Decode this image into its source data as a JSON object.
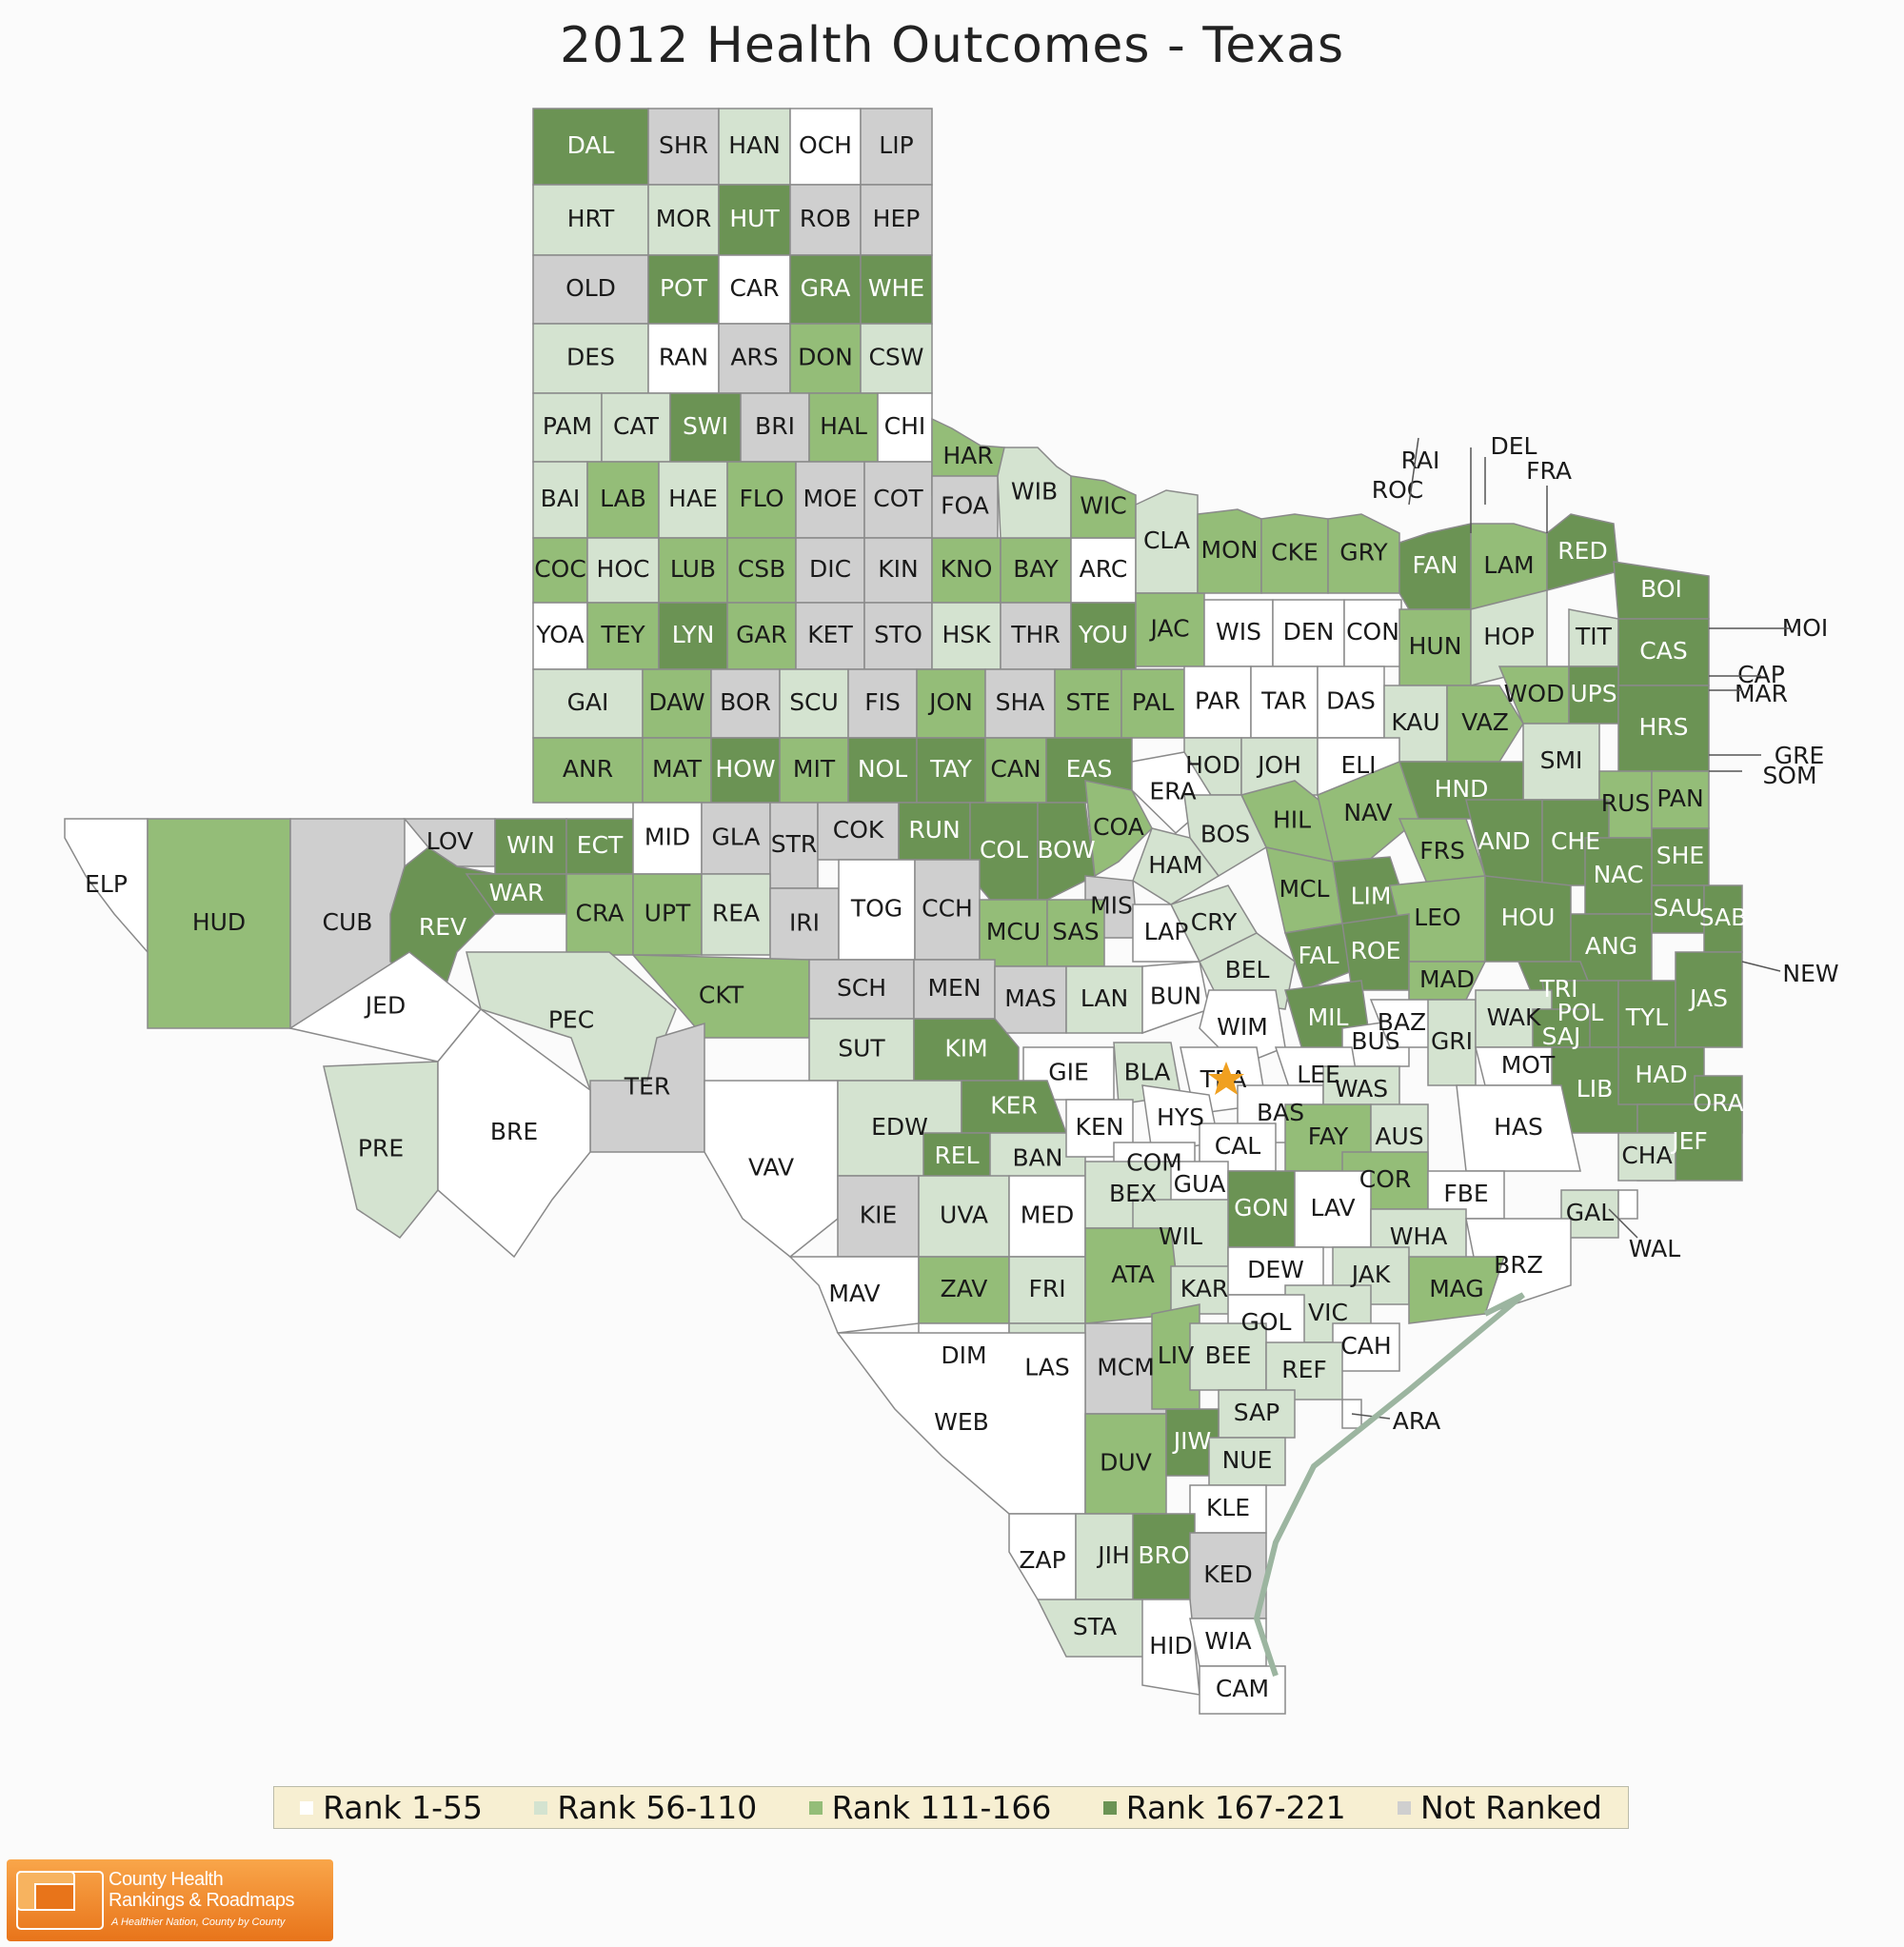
{
  "title": "2012 Health Outcomes - Texas",
  "legend": [
    {
      "label": "Rank 1-55",
      "color": "#ffffff"
    },
    {
      "label": "Rank 56-110",
      "color": "#d4e3d0"
    },
    {
      "label": "Rank 111-166",
      "color": "#94bd78"
    },
    {
      "label": "Rank 167-221",
      "color": "#6b9354"
    },
    {
      "label": "Not Ranked",
      "color": "#cfcfcf"
    }
  ],
  "brand": {
    "name": "County Health\nRankings & Roadmaps",
    "tagline": "A Healthier Nation, County by County"
  },
  "counties": [
    {
      "id": "DAL",
      "cls": 3
    },
    {
      "id": "SHR",
      "cls": 4
    },
    {
      "id": "HAN",
      "cls": 1
    },
    {
      "id": "OCH",
      "cls": 0
    },
    {
      "id": "LIP",
      "cls": 4
    },
    {
      "id": "HRT",
      "cls": 1
    },
    {
      "id": "MOR",
      "cls": 1
    },
    {
      "id": "HUT",
      "cls": 3
    },
    {
      "id": "ROB",
      "cls": 4
    },
    {
      "id": "HEP",
      "cls": 4
    },
    {
      "id": "OLD",
      "cls": 4
    },
    {
      "id": "POT",
      "cls": 3
    },
    {
      "id": "CAR",
      "cls": 0
    },
    {
      "id": "GRA",
      "cls": 3
    },
    {
      "id": "WHE",
      "cls": 3
    },
    {
      "id": "DES",
      "cls": 1
    },
    {
      "id": "RAN",
      "cls": 0
    },
    {
      "id": "ARS",
      "cls": 4
    },
    {
      "id": "DON",
      "cls": 2
    },
    {
      "id": "CSW",
      "cls": 1
    },
    {
      "id": "PAM",
      "cls": 1
    },
    {
      "id": "CAT",
      "cls": 1
    },
    {
      "id": "SWI",
      "cls": 3
    },
    {
      "id": "BRI",
      "cls": 4
    },
    {
      "id": "HAL",
      "cls": 2
    },
    {
      "id": "CHI",
      "cls": 0
    },
    {
      "id": "BAI",
      "cls": 1
    },
    {
      "id": "LAB",
      "cls": 2
    },
    {
      "id": "HAE",
      "cls": 1
    },
    {
      "id": "FLO",
      "cls": 2
    },
    {
      "id": "MOE",
      "cls": 4
    },
    {
      "id": "COT",
      "cls": 4
    },
    {
      "id": "COC",
      "cls": 2
    },
    {
      "id": "HOC",
      "cls": 1
    },
    {
      "id": "LUB",
      "cls": 2
    },
    {
      "id": "CSB",
      "cls": 2
    },
    {
      "id": "DIC",
      "cls": 4
    },
    {
      "id": "KIN",
      "cls": 4
    },
    {
      "id": "KNO",
      "cls": 2
    },
    {
      "id": "BAY",
      "cls": 2
    },
    {
      "id": "ARC",
      "cls": 0
    },
    {
      "id": "YOA",
      "cls": 0
    },
    {
      "id": "TEY",
      "cls": 2
    },
    {
      "id": "LYN",
      "cls": 3
    },
    {
      "id": "GAR",
      "cls": 2
    },
    {
      "id": "KET",
      "cls": 4
    },
    {
      "id": "STO",
      "cls": 4
    },
    {
      "id": "HSK",
      "cls": 1
    },
    {
      "id": "THR",
      "cls": 4
    },
    {
      "id": "YOU",
      "cls": 3
    },
    {
      "id": "GAI",
      "cls": 1
    },
    {
      "id": "DAW",
      "cls": 2
    },
    {
      "id": "BOR",
      "cls": 4
    },
    {
      "id": "SCU",
      "cls": 1
    },
    {
      "id": "FIS",
      "cls": 4
    },
    {
      "id": "JON",
      "cls": 2
    },
    {
      "id": "SHA",
      "cls": 4
    },
    {
      "id": "STE",
      "cls": 2
    },
    {
      "id": "PAL",
      "cls": 2
    },
    {
      "id": "ANR",
      "cls": 2
    },
    {
      "id": "MAT",
      "cls": 2
    },
    {
      "id": "HOW",
      "cls": 3
    },
    {
      "id": "MIT",
      "cls": 2
    },
    {
      "id": "NOL",
      "cls": 3
    },
    {
      "id": "TAY",
      "cls": 3
    },
    {
      "id": "CAN",
      "cls": 2
    },
    {
      "id": "EAS",
      "cls": 3
    },
    {
      "id": "HAR",
      "cls": 2
    },
    {
      "id": "FOA",
      "cls": 4
    },
    {
      "id": "WIB",
      "cls": 1
    },
    {
      "id": "WIC",
      "cls": 2
    },
    {
      "id": "CLA",
      "cls": 1
    },
    {
      "id": "JAC",
      "cls": 2
    },
    {
      "id": "MON",
      "cls": 2
    },
    {
      "id": "CKE",
      "cls": 2
    },
    {
      "id": "GRY",
      "cls": 2
    },
    {
      "id": "FAN",
      "cls": 3
    },
    {
      "id": "LAM",
      "cls": 2
    },
    {
      "id": "RED",
      "cls": 3
    },
    {
      "id": "BOI",
      "cls": 3
    },
    {
      "id": "WIS",
      "cls": 0
    },
    {
      "id": "DEN",
      "cls": 0
    },
    {
      "id": "CON",
      "cls": 0
    },
    {
      "id": "HUN",
      "cls": 2
    },
    {
      "id": "HOP",
      "cls": 1
    },
    {
      "id": "TIT",
      "cls": 1
    },
    {
      "id": "CAS",
      "cls": 3
    },
    {
      "id": "PAR",
      "cls": 0
    },
    {
      "id": "TAR",
      "cls": 0
    },
    {
      "id": "DAS",
      "cls": 0
    },
    {
      "id": "KAU",
      "cls": 1
    },
    {
      "id": "VAZ",
      "cls": 2
    },
    {
      "id": "WOD",
      "cls": 2
    },
    {
      "id": "UPS",
      "cls": 3
    },
    {
      "id": "HRS",
      "cls": 3
    },
    {
      "id": "HOD",
      "cls": 1
    },
    {
      "id": "JOH",
      "cls": 1
    },
    {
      "id": "ELI",
      "cls": 0
    },
    {
      "id": "ERA",
      "cls": 0
    },
    {
      "id": "SMI",
      "cls": 1
    },
    {
      "id": "HND",
      "cls": 3
    },
    {
      "id": "RUS",
      "cls": 2
    },
    {
      "id": "PAN",
      "cls": 2
    },
    {
      "id": "ELP",
      "cls": 0
    },
    {
      "id": "HUD",
      "cls": 2
    },
    {
      "id": "CUB",
      "cls": 4
    },
    {
      "id": "LOV",
      "cls": 4
    },
    {
      "id": "WIN",
      "cls": 3
    },
    {
      "id": "ECT",
      "cls": 3
    },
    {
      "id": "MID",
      "cls": 0
    },
    {
      "id": "GLA",
      "cls": 4
    },
    {
      "id": "STR",
      "cls": 4
    },
    {
      "id": "COK",
      "cls": 4
    },
    {
      "id": "RUN",
      "cls": 3
    },
    {
      "id": "COL",
      "cls": 3
    },
    {
      "id": "BOW",
      "cls": 3
    },
    {
      "id": "COA",
      "cls": 2
    },
    {
      "id": "HIL",
      "cls": 2
    },
    {
      "id": "NAV",
      "cls": 2
    },
    {
      "id": "BOS",
      "cls": 1
    },
    {
      "id": "HAM",
      "cls": 1
    },
    {
      "id": "MIS",
      "cls": 4
    },
    {
      "id": "FRS",
      "cls": 2
    },
    {
      "id": "AND",
      "cls": 3
    },
    {
      "id": "CHE",
      "cls": 3
    },
    {
      "id": "SHE",
      "cls": 3
    },
    {
      "id": "NAC",
      "cls": 3
    },
    {
      "id": "SAU",
      "cls": 3
    },
    {
      "id": "SAB",
      "cls": 3
    },
    {
      "id": "REV",
      "cls": 3
    },
    {
      "id": "WAR",
      "cls": 3
    },
    {
      "id": "CRA",
      "cls": 2
    },
    {
      "id": "UPT",
      "cls": 2
    },
    {
      "id": "REA",
      "cls": 1
    },
    {
      "id": "IRI",
      "cls": 4
    },
    {
      "id": "TOG",
      "cls": 0
    },
    {
      "id": "CCH",
      "cls": 4
    },
    {
      "id": "MCU",
      "cls": 2
    },
    {
      "id": "SAS",
      "cls": 2
    },
    {
      "id": "MCL",
      "cls": 2
    },
    {
      "id": "LIM",
      "cls": 3
    },
    {
      "id": "LEO",
      "cls": 2
    },
    {
      "id": "HOU",
      "cls": 3
    },
    {
      "id": "ANG",
      "cls": 3
    },
    {
      "id": "CRY",
      "cls": 1
    },
    {
      "id": "LAP",
      "cls": 0
    },
    {
      "id": "FAL",
      "cls": 3
    },
    {
      "id": "ROE",
      "cls": 3
    },
    {
      "id": "BEL",
      "cls": 1
    },
    {
      "id": "MAD",
      "cls": 2
    },
    {
      "id": "TRI",
      "cls": 3
    },
    {
      "id": "POL",
      "cls": 3
    },
    {
      "id": "TYL",
      "cls": 3
    },
    {
      "id": "JAS",
      "cls": 3
    },
    {
      "id": "JED",
      "cls": 0
    },
    {
      "id": "PEC",
      "cls": 1
    },
    {
      "id": "CKT",
      "cls": 2
    },
    {
      "id": "SCH",
      "cls": 4
    },
    {
      "id": "MEN",
      "cls": 4
    },
    {
      "id": "MAS",
      "cls": 4
    },
    {
      "id": "LAN",
      "cls": 1
    },
    {
      "id": "BUN",
      "cls": 0
    },
    {
      "id": "WIM",
      "cls": 0
    },
    {
      "id": "MIL",
      "cls": 3
    },
    {
      "id": "BUS",
      "cls": 0
    },
    {
      "id": "BAZ",
      "cls": 0
    },
    {
      "id": "GRI",
      "cls": 1
    },
    {
      "id": "WAK",
      "cls": 1
    },
    {
      "id": "SAJ",
      "cls": 3
    },
    {
      "id": "TER",
      "cls": 4
    },
    {
      "id": "SUT",
      "cls": 1
    },
    {
      "id": "KIM",
      "cls": 3
    },
    {
      "id": "GIE",
      "cls": 0
    },
    {
      "id": "BLA",
      "cls": 1
    },
    {
      "id": "TRA",
      "cls": 0
    },
    {
      "id": "LEE",
      "cls": 0
    },
    {
      "id": "MOT",
      "cls": 0
    },
    {
      "id": "LIB",
      "cls": 3
    },
    {
      "id": "HAD",
      "cls": 3
    },
    {
      "id": "PRE",
      "cls": 1
    },
    {
      "id": "BRE",
      "cls": 0
    },
    {
      "id": "VAV",
      "cls": 0
    },
    {
      "id": "EDW",
      "cls": 1
    },
    {
      "id": "KER",
      "cls": 3
    },
    {
      "id": "HYS",
      "cls": 0
    },
    {
      "id": "BAS",
      "cls": 0
    },
    {
      "id": "WAS",
      "cls": 1
    },
    {
      "id": "ORA",
      "cls": 3
    },
    {
      "id": "REL",
      "cls": 3
    },
    {
      "id": "BAN",
      "cls": 1
    },
    {
      "id": "KEN",
      "cls": 0
    },
    {
      "id": "COM",
      "cls": 0
    },
    {
      "id": "CAL",
      "cls": 0
    },
    {
      "id": "FAY",
      "cls": 2
    },
    {
      "id": "AUS",
      "cls": 1
    },
    {
      "id": "HAS",
      "cls": 0
    },
    {
      "id": "JEF",
      "cls": 3
    },
    {
      "id": "CHA",
      "cls": 1
    },
    {
      "id": "KIE",
      "cls": 4
    },
    {
      "id": "UVA",
      "cls": 1
    },
    {
      "id": "MED",
      "cls": 0
    },
    {
      "id": "BEX",
      "cls": 1
    },
    {
      "id": "GUA",
      "cls": 0
    },
    {
      "id": "GON",
      "cls": 3
    },
    {
      "id": "COR",
      "cls": 2
    },
    {
      "id": "LAV",
      "cls": 0
    },
    {
      "id": "FBE",
      "cls": 0
    },
    {
      "id": "GAL",
      "cls": 1
    },
    {
      "id": "WAL",
      "cls": 0
    },
    {
      "id": "WIL",
      "cls": 1
    },
    {
      "id": "WHA",
      "cls": 1
    },
    {
      "id": "BRZ",
      "cls": 0
    },
    {
      "id": "MAV",
      "cls": 0
    },
    {
      "id": "ZAV",
      "cls": 2
    },
    {
      "id": "FRI",
      "cls": 1
    },
    {
      "id": "ATA",
      "cls": 2
    },
    {
      "id": "KAR",
      "cls": 1
    },
    {
      "id": "DEW",
      "cls": 0
    },
    {
      "id": "JAK",
      "cls": 1
    },
    {
      "id": "VIC",
      "cls": 1
    },
    {
      "id": "MAG",
      "cls": 2
    },
    {
      "id": "DIM",
      "cls": 0
    },
    {
      "id": "GOL",
      "cls": 0
    },
    {
      "id": "LAS",
      "cls": 1
    },
    {
      "id": "MCM",
      "cls": 4
    },
    {
      "id": "LIV",
      "cls": 2
    },
    {
      "id": "BEE",
      "cls": 1
    },
    {
      "id": "CAH",
      "cls": 0
    },
    {
      "id": "REF",
      "cls": 1
    },
    {
      "id": "SAP",
      "cls": 1
    },
    {
      "id": "ARA",
      "cls": 0
    },
    {
      "id": "WEB",
      "cls": 0
    },
    {
      "id": "DUV",
      "cls": 2
    },
    {
      "id": "JIW",
      "cls": 3
    },
    {
      "id": "NUE",
      "cls": 1
    },
    {
      "id": "KLE",
      "cls": 0
    },
    {
      "id": "ZAP",
      "cls": 0
    },
    {
      "id": "JIH",
      "cls": 1
    },
    {
      "id": "BRO",
      "cls": 3
    },
    {
      "id": "KED",
      "cls": 4
    },
    {
      "id": "STA",
      "cls": 1
    },
    {
      "id": "HID",
      "cls": 0
    },
    {
      "id": "WIA",
      "cls": 0
    },
    {
      "id": "CAM",
      "cls": 0
    },
    {
      "id": "RAI",
      "cls": 0
    },
    {
      "id": "DEL",
      "cls": 0
    },
    {
      "id": "FRA",
      "cls": 0
    },
    {
      "id": "ROC",
      "cls": 0
    },
    {
      "id": "MOI",
      "cls": 0
    },
    {
      "id": "CAP",
      "cls": 0
    },
    {
      "id": "MAR",
      "cls": 0
    },
    {
      "id": "GRE",
      "cls": 0
    },
    {
      "id": "SOM",
      "cls": 0
    },
    {
      "id": "NEW",
      "cls": 0
    }
  ]
}
